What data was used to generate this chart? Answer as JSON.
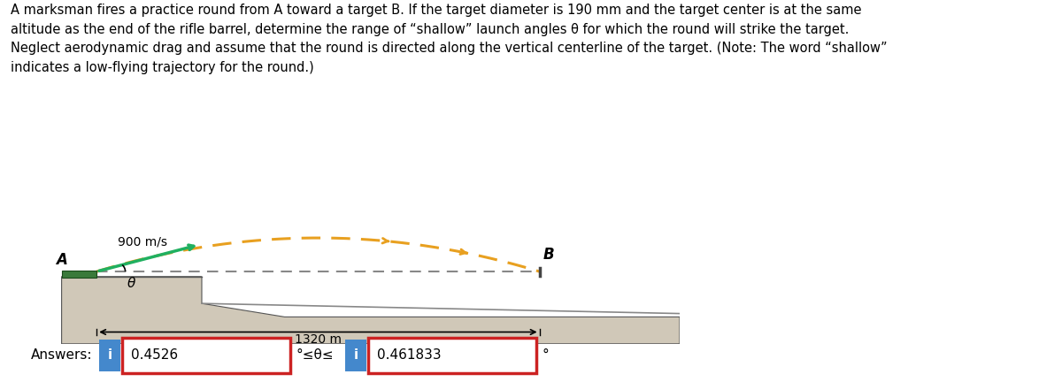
{
  "title_text": "A marksman fires a practice round from A toward a target B. If the target diameter is 190 mm and the target center is at the same\naltitude as the end of the rifle barrel, determine the range of “shallow” launch angles θ for which the round will strike the target.\nNeglect aerodynamic drag and assume that the round is directed along the vertical centerline of the target. (Note: The word “shallow”\nindicates a low-flying trajectory for the round.)",
  "speed_label": "900 m/s",
  "distance_label": "1320 m",
  "label_A": "A",
  "label_B": "B",
  "theta_label": "θ",
  "answer_label": "Answers:",
  "val1": "0.4526",
  "val2": "0.461833",
  "inequality": "°≤θ≤",
  "deg_symbol": "°",
  "bg_color": "#ffffff",
  "text_color": "#000000",
  "platform_color": "#d0c8b8",
  "platform_edge_color": "#555555",
  "ground_color": "#c8c0a8",
  "trajectory_color": "#e8a020",
  "velocity_arrow_color": "#20b060",
  "dashed_line_color": "#888888",
  "box_border_color": "#cc2222",
  "info_btn_color": "#4488cc",
  "slope_line_color": "#888888"
}
